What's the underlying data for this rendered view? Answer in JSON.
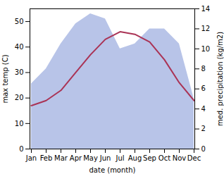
{
  "chart_data": {
    "type": "line",
    "categories": [
      "Jan",
      "Feb",
      "Mar",
      "Apr",
      "May",
      "Jun",
      "Jul",
      "Aug",
      "Sep",
      "Oct",
      "Nov",
      "Dec"
    ],
    "series": [
      {
        "type": "area",
        "axis": "y2",
        "color": "#b8c4e8",
        "values": [
          6.5,
          8.0,
          10.5,
          12.5,
          13.5,
          13.0,
          10.0,
          10.5,
          12.0,
          12.0,
          10.5,
          5.0
        ]
      },
      {
        "type": "line",
        "color": "#aa3355",
        "values": [
          17,
          19,
          23,
          30,
          37,
          43,
          46,
          45,
          42,
          35,
          26,
          19
        ]
      }
    ],
    "xlabel": "date (month)",
    "ylabel": "max temp (C)",
    "y2label": "med. precipitation (kg/m2)",
    "ylim": [
      0,
      55
    ],
    "yticks": [
      0,
      10,
      20,
      30,
      40,
      50
    ],
    "y2lim": [
      0,
      14
    ],
    "y2ticks": [
      0,
      2,
      4,
      6,
      8,
      10,
      12,
      14
    ],
    "grid": false
  }
}
